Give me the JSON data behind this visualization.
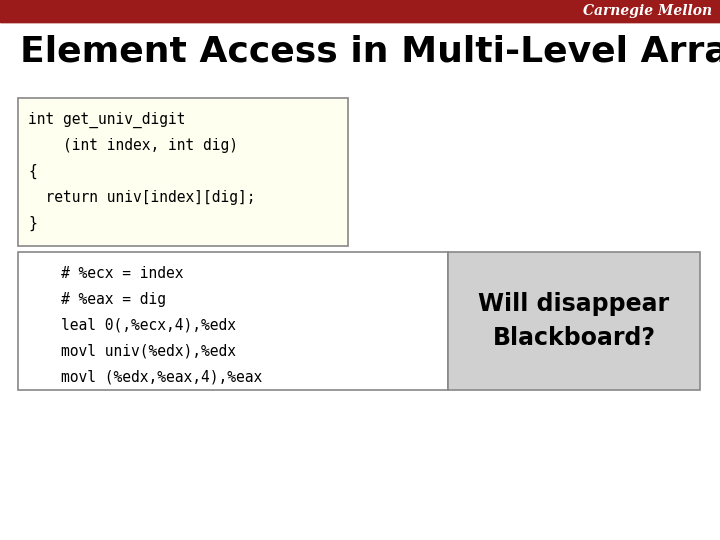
{
  "title": "Element Access in Multi-Level Array",
  "title_fontsize": 26,
  "title_color": "#000000",
  "header_bar_color": "#9B1B1B",
  "header_text": "Carnegie Mellon",
  "header_text_color": "#FFFFFF",
  "header_fontsize": 10,
  "bg_color": "#FFFFFF",
  "code_box1_bg": "#FFFFF0",
  "code_box1_border": "#888888",
  "code_box2_bg": "#FFFFFF",
  "code_box2_border": "#888888",
  "gray_box_bg": "#D0D0D0",
  "gray_box_border": "#888888",
  "code1_lines": [
    "int get_univ_digit",
    "    (int index, int dig)",
    "{",
    "  return univ[index][dig];",
    "}"
  ],
  "code2_lines": [
    "    # %ecx = index",
    "    # %eax = dig",
    "    leal 0(,%ecx,4),%edx",
    "    movl univ(%edx),%edx",
    "    movl (%edx,%eax,4),%eax"
  ],
  "will_disappear_text": "Will disappear\nBlackboard?",
  "will_disappear_fontsize": 17,
  "code_fontsize": 10.5,
  "fig_width": 7.2,
  "fig_height": 5.4,
  "dpi": 100
}
